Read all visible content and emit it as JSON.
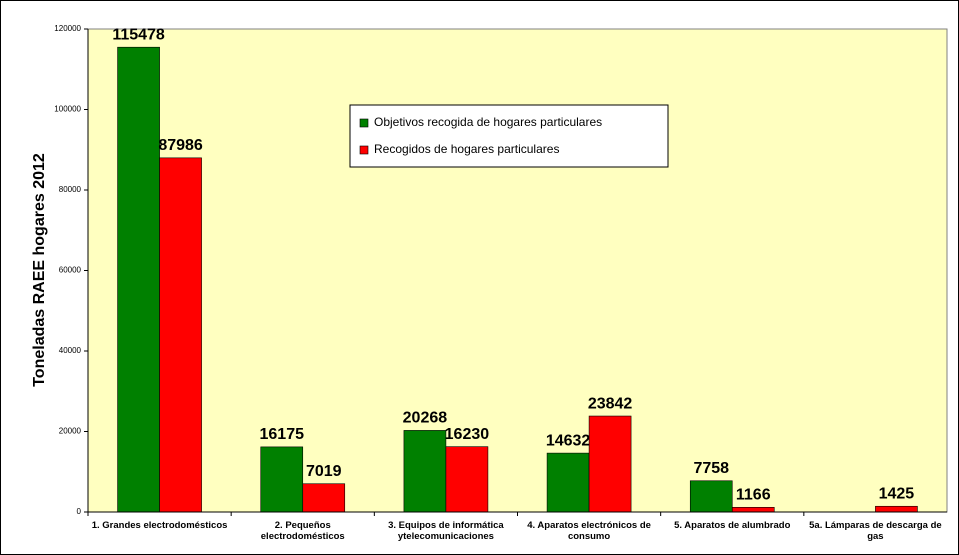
{
  "chart_data": {
    "type": "bar",
    "y_label": "Toneladas RAEE hogares 2012",
    "categories": [
      "1. Grandes electrodomésticos",
      "2. Pequeños electrodomésticos",
      "3. Equipos de informática ytelecomunicaciones",
      "4. Aparatos electrónicos de consumo",
      "5. Aparatos de alumbrado",
      "5a. Lámparas de descarga de gas"
    ],
    "series": [
      {
        "name": "Objetivos recogida de hogares particulares",
        "color": "#008000",
        "values": [
          115478,
          16175,
          20268,
          14632,
          7758,
          null
        ]
      },
      {
        "name": "Recogidos de hogares particulares",
        "color": "#ff0000",
        "values": [
          87986,
          7019,
          16230,
          23842,
          1166,
          1425
        ]
      }
    ],
    "ylim": [
      0,
      120000
    ],
    "yticks": [
      0,
      20000,
      40000,
      60000,
      80000,
      100000,
      120000
    ],
    "legend": "top-center",
    "plot_background": "#ffffc0"
  }
}
